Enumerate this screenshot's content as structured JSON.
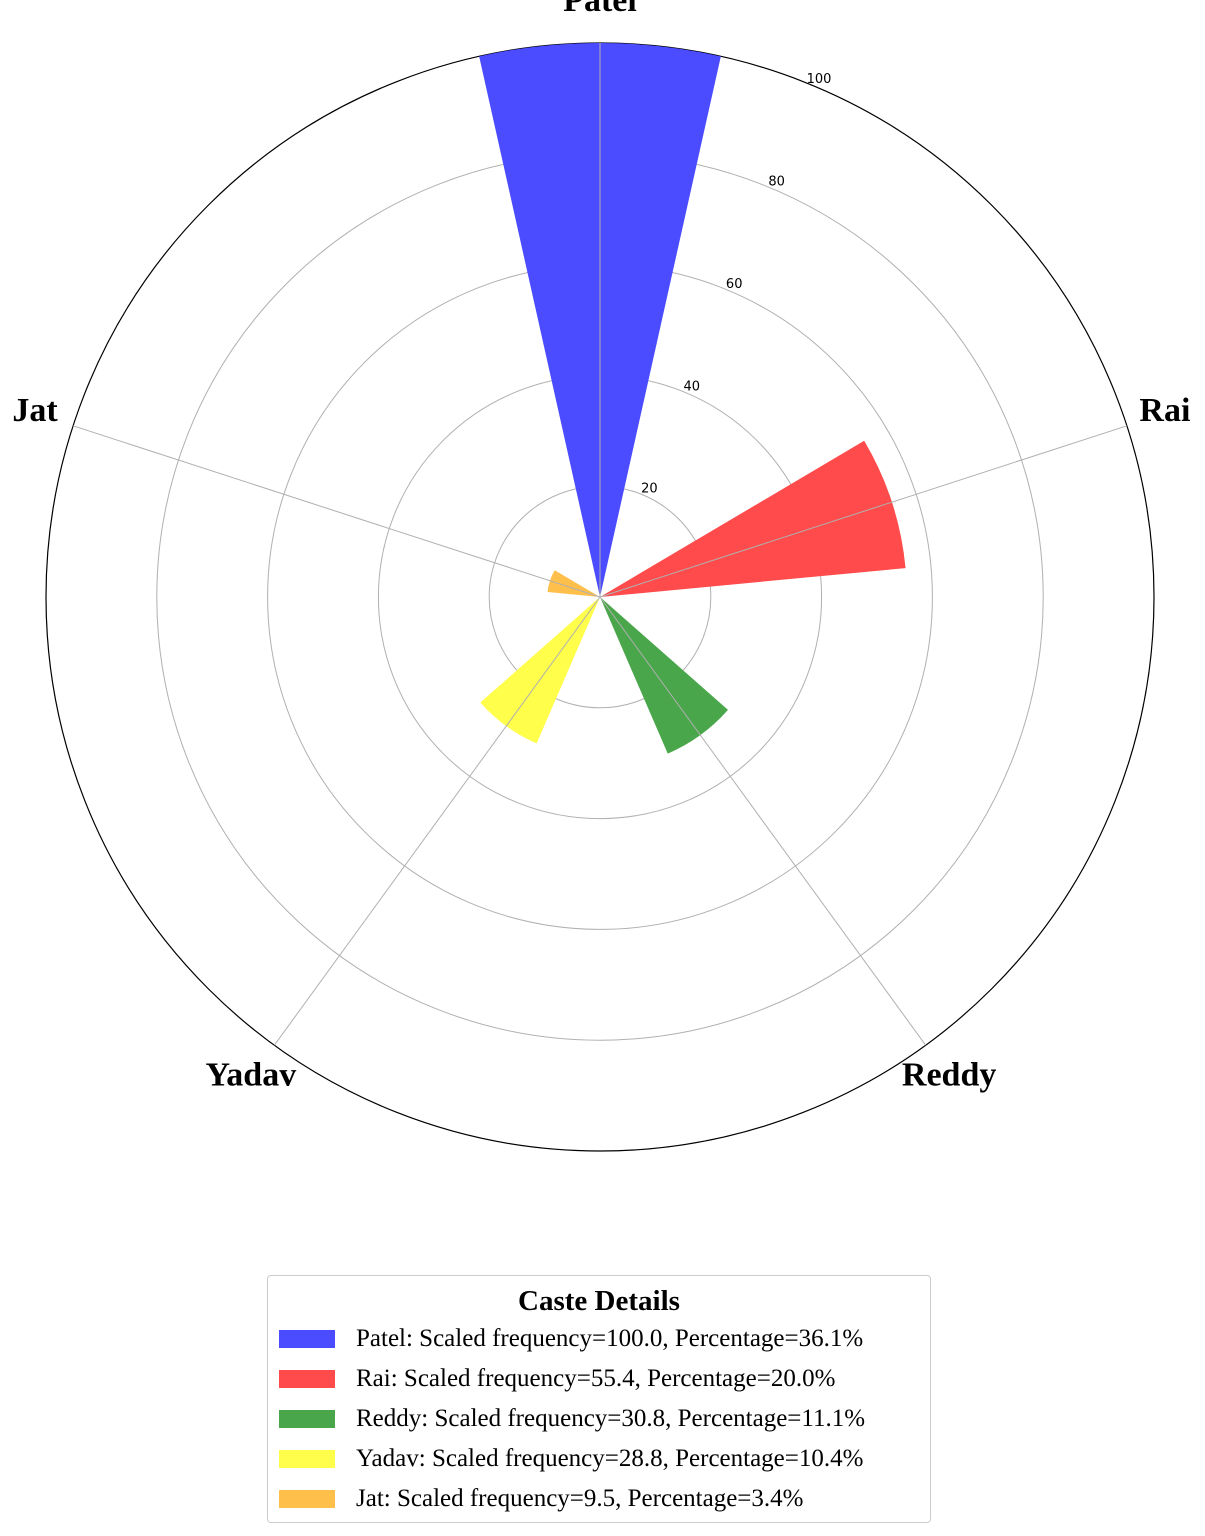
{
  "chart_data": {
    "type": "polar-bar",
    "categories": [
      "Patel",
      "Rai",
      "Reddy",
      "Yadav",
      "Jat"
    ],
    "values": [
      100.0,
      55.4,
      30.8,
      28.8,
      9.5
    ],
    "percentages": [
      36.1,
      20.0,
      11.1,
      10.4,
      3.4
    ],
    "colors": [
      "#4b4bff",
      "#ff4b4b",
      "#4aa64a",
      "#ffff4b",
      "#ffbf4b"
    ],
    "rlim": [
      0,
      100
    ],
    "radial_ticks": [
      20,
      40,
      60,
      80,
      100
    ],
    "grid": true,
    "legend": {
      "title": "Caste Details",
      "placement": "bottom-center",
      "entries": [
        "Patel: Scaled frequency=100.0, Percentage=36.1%",
        "Rai: Scaled frequency=55.4, Percentage=20.0%",
        "Reddy: Scaled frequency=30.8, Percentage=11.1%",
        "Yadav: Scaled frequency=28.8, Percentage=10.4%",
        "Jat: Scaled frequency=9.5, Percentage=3.4%"
      ]
    }
  }
}
